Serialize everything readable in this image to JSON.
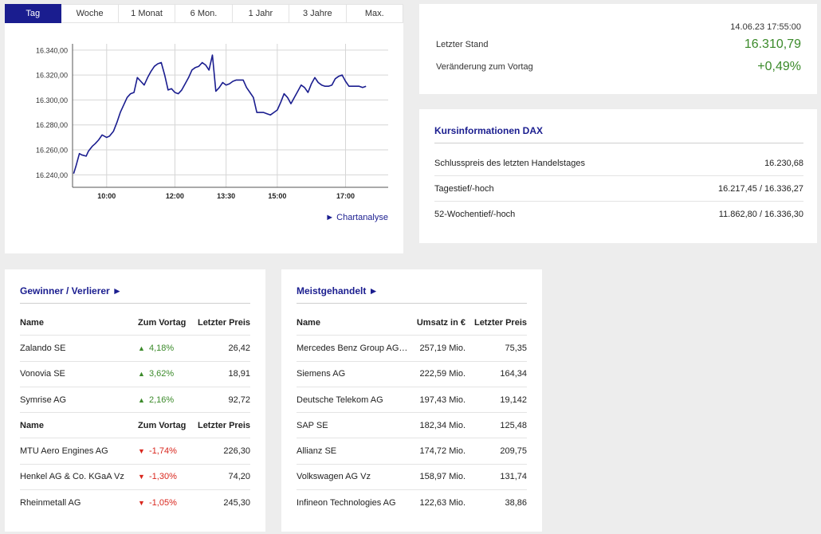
{
  "tabs": [
    "Tag",
    "Woche",
    "1 Monat",
    "6 Mon.",
    "1 Jahr",
    "3 Jahre",
    "Max."
  ],
  "active_tab": "Tag",
  "chart_link": "► Chartanalyse",
  "chart_data": {
    "type": "line",
    "title": "",
    "xlabel": "",
    "ylabel": "",
    "x_ticks": [
      "10:00",
      "12:00",
      "13:30",
      "15:00",
      "17:00"
    ],
    "x_tick_minutes": [
      600,
      720,
      810,
      900,
      1020
    ],
    "xlim_minutes": [
      540,
      1095
    ],
    "y_ticks": [
      "16.240,00",
      "16.260,00",
      "16.280,00",
      "16.300,00",
      "16.320,00",
      "16.340,00"
    ],
    "y_tick_values": [
      16240,
      16260,
      16280,
      16300,
      16320,
      16340
    ],
    "ylim": [
      16230,
      16345
    ],
    "grid": true,
    "color": "#1a1d8f",
    "series": [
      {
        "x": [
          542,
          546,
          552,
          556,
          564,
          568,
          575,
          580,
          586,
          592,
          600,
          605,
          612,
          618,
          624,
          630,
          636,
          642,
          648,
          654,
          660,
          666,
          672,
          678,
          684,
          690,
          696,
          702,
          708,
          714,
          720,
          726,
          732,
          738,
          744,
          750,
          756,
          762,
          768,
          774,
          780,
          786,
          792,
          798,
          804,
          810,
          816,
          822,
          828,
          834,
          840,
          846,
          852,
          858,
          864,
          870,
          876,
          882,
          888,
          894,
          900,
          906,
          912,
          918,
          924,
          930,
          936,
          942,
          948,
          954,
          960,
          966,
          972,
          978,
          984,
          990,
          996,
          1002,
          1008,
          1014,
          1020,
          1026,
          1032,
          1038,
          1044,
          1050,
          1056
        ],
        "y": [
          16241,
          16247,
          16257,
          16256,
          16255,
          16259,
          16263,
          16265,
          16268,
          16272,
          16270,
          16271,
          16275,
          16282,
          16290,
          16296,
          16302,
          16305,
          16306,
          16318,
          16315,
          16312,
          16318,
          16323,
          16327,
          16329,
          16330,
          16320,
          16308,
          16309,
          16306,
          16305,
          16308,
          16313,
          16318,
          16324,
          16326,
          16327,
          16330,
          16328,
          16324,
          16336,
          16307,
          16310,
          16314,
          16312,
          16313,
          16315,
          16316,
          16316,
          16316,
          16310,
          16306,
          16302,
          16290,
          16290,
          16290,
          16289,
          16288,
          16290,
          16292,
          16298,
          16305,
          16302,
          16297,
          16302,
          16307,
          16312,
          16310,
          16306,
          16313,
          16318,
          16314,
          16312,
          16311,
          16311,
          16312,
          16317,
          16319,
          16320,
          16315,
          16311,
          16311,
          16311,
          16311,
          16310,
          16311
        ]
      }
    ]
  },
  "quote": {
    "timestamp": "14.06.23 17:55:00",
    "last_label": "Letzter Stand",
    "last_value": "16.310,79",
    "change_label": "Veränderung zum Vortag",
    "change_value": "+0,49%"
  },
  "info": {
    "title": "Kursinformationen DAX",
    "rows": [
      {
        "label": "Schlusspreis des letzten Handelstages",
        "value": "16.230,68"
      },
      {
        "label": "Tagestief/-hoch",
        "value": "16.217,45 / 16.336,27"
      },
      {
        "label": "52-Wochentief/-hoch",
        "value": "11.862,80 / 16.336,30"
      }
    ]
  },
  "movers": {
    "title": "Gewinner / Verlierer ►",
    "headers": [
      "Name",
      "Zum Vortag",
      "Letzter Preis"
    ],
    "winners": [
      {
        "name": "Zalando SE",
        "change": "4,18%",
        "price": "26,42"
      },
      {
        "name": "Vonovia SE",
        "change": "3,62%",
        "price": "18,91"
      },
      {
        "name": "Symrise AG",
        "change": "2,16%",
        "price": "92,72"
      }
    ],
    "losers": [
      {
        "name": "MTU Aero Engines AG",
        "change": "-1,74%",
        "price": "226,30"
      },
      {
        "name": "Henkel AG & Co. KGaA Vz",
        "change": "-1,30%",
        "price": "74,20"
      },
      {
        "name": "Rheinmetall AG",
        "change": "-1,05%",
        "price": "245,30"
      }
    ],
    "up_arrow": "▲",
    "down_arrow": "▼"
  },
  "active": {
    "title": "Meistgehandelt ►",
    "headers": [
      "Name",
      "Umsatz in €",
      "Letzter Preis"
    ],
    "rows": [
      {
        "name": "Mercedes Benz Group AG ...",
        "volume": "257,19 Mio.",
        "price": "75,35"
      },
      {
        "name": "Siemens AG",
        "volume": "222,59 Mio.",
        "price": "164,34"
      },
      {
        "name": "Deutsche Telekom AG",
        "volume": "197,43 Mio.",
        "price": "19,142"
      },
      {
        "name": "SAP SE",
        "volume": "182,34 Mio.",
        "price": "125,48"
      },
      {
        "name": "Allianz SE",
        "volume": "174,72 Mio.",
        "price": "209,75"
      },
      {
        "name": "Volkswagen AG Vz",
        "volume": "158,97 Mio.",
        "price": "131,74"
      },
      {
        "name": "Infineon Technologies AG",
        "volume": "122,63 Mio.",
        "price": "38,86"
      }
    ]
  }
}
